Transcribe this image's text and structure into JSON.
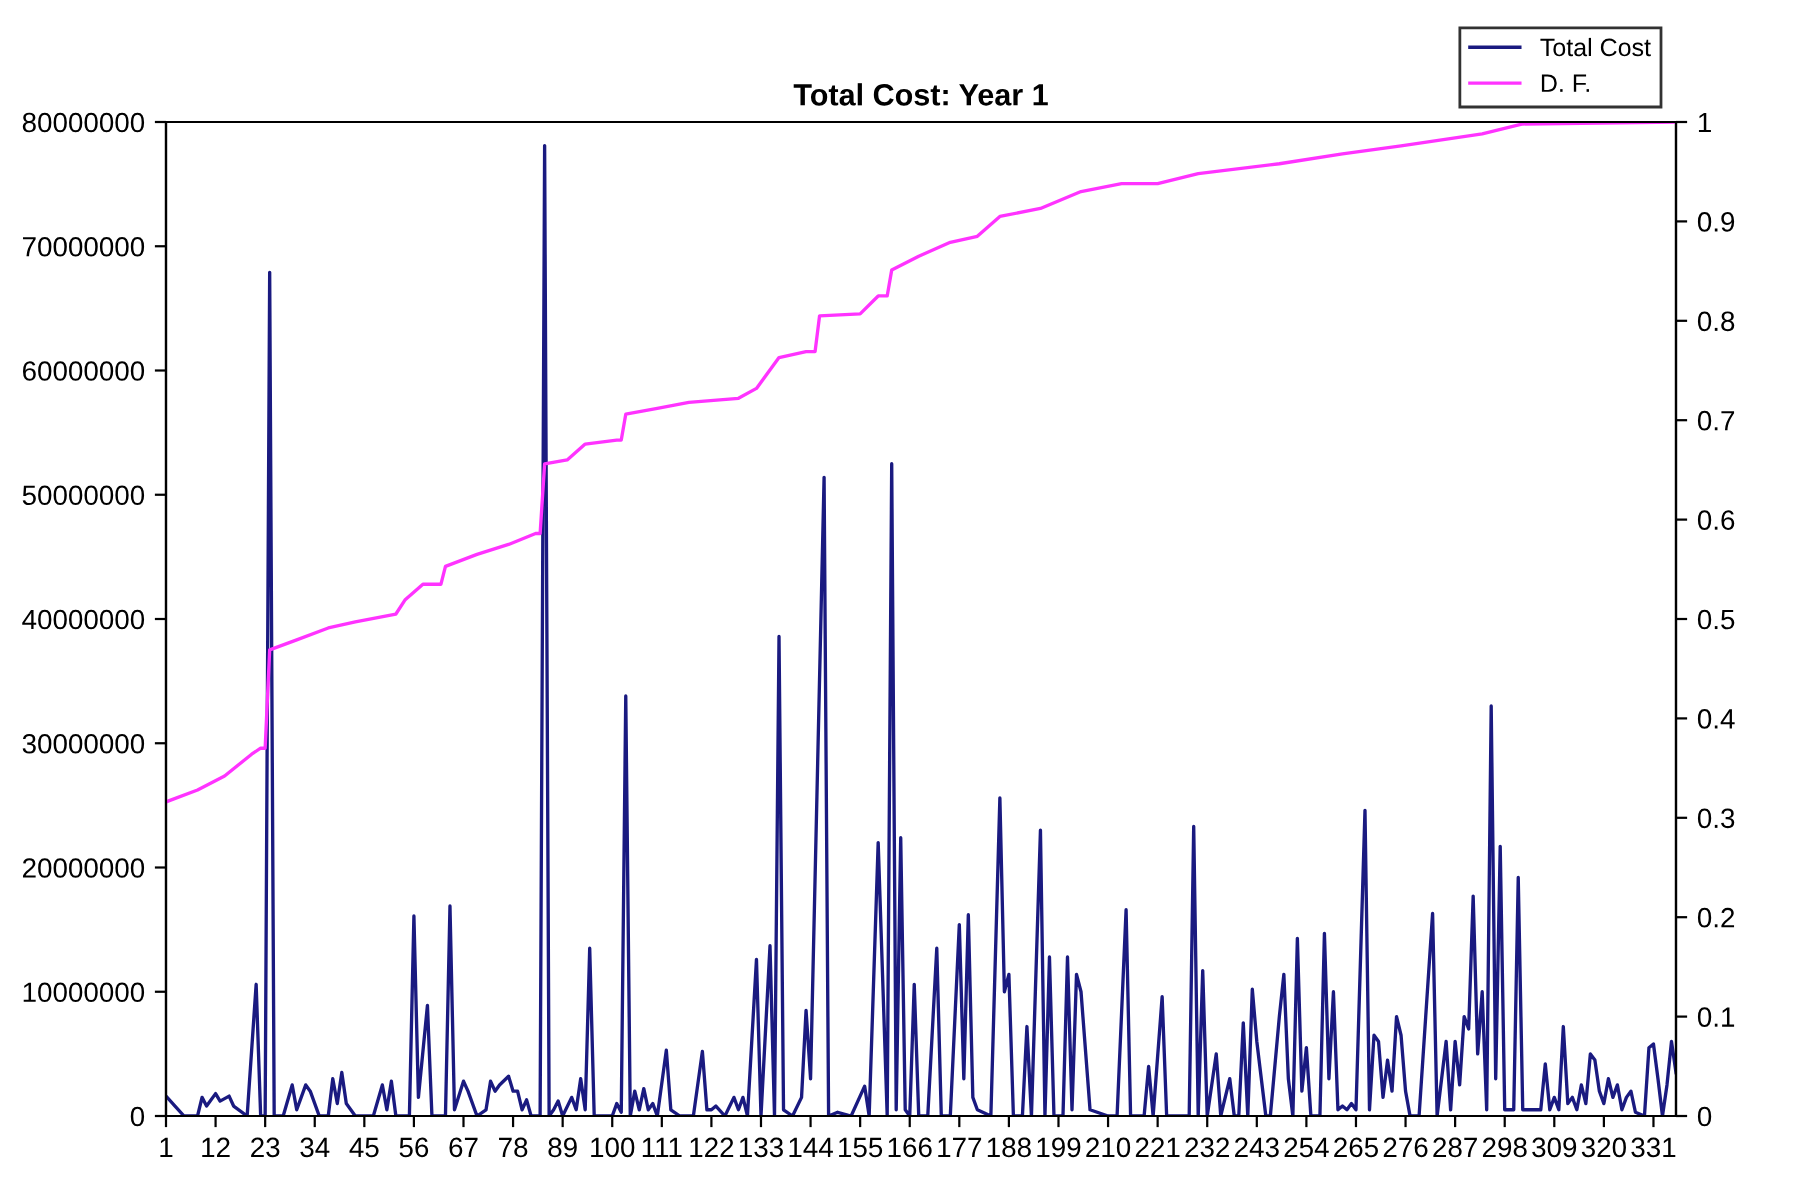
{
  "chart_data": {
    "type": "line",
    "title": "Total Cost: Year 1",
    "xlim": [
      1,
      336
    ],
    "xticks": [
      1,
      12,
      23,
      34,
      45,
      56,
      67,
      78,
      89,
      100,
      111,
      122,
      133,
      144,
      155,
      166,
      177,
      188,
      199,
      210,
      221,
      232,
      243,
      254,
      265,
      276,
      287,
      298,
      309,
      320,
      331
    ],
    "ylim": [
      0,
      80000000
    ],
    "yticks": [
      0,
      10000000,
      20000000,
      30000000,
      40000000,
      50000000,
      60000000,
      70000000,
      80000000
    ],
    "y2lim": [
      0,
      1
    ],
    "y2ticks": [
      0,
      0.1,
      0.2,
      0.3,
      0.4,
      0.5,
      0.6,
      0.7,
      0.8,
      0.9,
      1
    ],
    "grid": false,
    "legend": "top right",
    "series": [
      {
        "name": "Total Cost",
        "color": "#1a1a80",
        "x": [
          1,
          3,
          5,
          8,
          9,
          10,
          12,
          13,
          15,
          16,
          19,
          21,
          22,
          23,
          24,
          25,
          27,
          29,
          30,
          32,
          33,
          35,
          37,
          38,
          39,
          40,
          41,
          43,
          47,
          49,
          50,
          51,
          52,
          55,
          56,
          57,
          59,
          60,
          63,
          64,
          65,
          67,
          68,
          70,
          72,
          73,
          74,
          75,
          77,
          78,
          79,
          80,
          81,
          82,
          84,
          85,
          86,
          87,
          88,
          89,
          91,
          92,
          93,
          94,
          95,
          96,
          100,
          101,
          102,
          103,
          104,
          105,
          106,
          107,
          108,
          109,
          110,
          112,
          113,
          115,
          118,
          120,
          121,
          122,
          123,
          125,
          127,
          128,
          129,
          130,
          132,
          133,
          135,
          136,
          137,
          138,
          140,
          142,
          143,
          144,
          147,
          148,
          150,
          153,
          156,
          157,
          159,
          161,
          162,
          163,
          164,
          165,
          166,
          167,
          168,
          170,
          172,
          173,
          175,
          177,
          178,
          179,
          180,
          181,
          184,
          186,
          187,
          188,
          189,
          191,
          192,
          193,
          195,
          196,
          197,
          198,
          200,
          201,
          202,
          203,
          204,
          206,
          210,
          212,
          214,
          215,
          218,
          219,
          220,
          222,
          223,
          228,
          229,
          230,
          231,
          232,
          234,
          235,
          237,
          238,
          239,
          240,
          241,
          242,
          243,
          245,
          246,
          248,
          249,
          250,
          251,
          252,
          253,
          254,
          255,
          257,
          258,
          259,
          260,
          261,
          262,
          263,
          264,
          265,
          267,
          268,
          269,
          270,
          271,
          272,
          273,
          274,
          275,
          276,
          277,
          279,
          282,
          283,
          285,
          286,
          287,
          288,
          289,
          290,
          291,
          292,
          293,
          294,
          295,
          296,
          297,
          298,
          300,
          301,
          302,
          304,
          305,
          306,
          307,
          308,
          309,
          310,
          311,
          312,
          313,
          314,
          315,
          316,
          317,
          318,
          319,
          320,
          321,
          322,
          323,
          324,
          325,
          326,
          327,
          329,
          330,
          331,
          332,
          333,
          334,
          335,
          336
        ],
        "values": [
          1600000,
          800000,
          0,
          0,
          1500000,
          800000,
          1800000,
          1200000,
          1600000,
          800000,
          0,
          10600000,
          0,
          0,
          67900000,
          0,
          0,
          2500000,
          500000,
          2500000,
          2000000,
          0,
          0,
          3000000,
          1000000,
          3500000,
          1000000,
          0,
          0,
          2500000,
          500000,
          2800000,
          0,
          0,
          16100000,
          1500000,
          8900000,
          0,
          0,
          16900000,
          500000,
          2800000,
          2000000,
          0,
          500000,
          2800000,
          2000000,
          2500000,
          3200000,
          2000000,
          2000000,
          500000,
          1300000,
          0,
          0,
          78100000,
          0,
          500000,
          1200000,
          0,
          1500000,
          500000,
          3000000,
          500000,
          13500000,
          0,
          0,
          1000000,
          300000,
          33800000,
          0,
          2000000,
          500000,
          2200000,
          500000,
          1000000,
          0,
          5300000,
          500000,
          0,
          0,
          5200000,
          500000,
          500000,
          800000,
          0,
          1500000,
          500000,
          1500000,
          0,
          12600000,
          0,
          13700000,
          0,
          38600000,
          500000,
          0,
          1500000,
          8500000,
          3000000,
          51400000,
          0,
          300000,
          0,
          2400000,
          0,
          22000000,
          0,
          52500000,
          500000,
          22400000,
          500000,
          0,
          10600000,
          0,
          0,
          13500000,
          0,
          0,
          15400000,
          3000000,
          16200000,
          1500000,
          500000,
          0,
          25600000,
          10000000,
          11400000,
          0,
          0,
          7200000,
          0,
          23000000,
          0,
          12800000,
          0,
          0,
          12800000,
          500000,
          11400000,
          10000000,
          500000,
          0,
          0,
          16600000,
          0,
          0,
          4000000,
          0,
          9600000,
          0,
          0,
          23300000,
          0,
          11700000,
          0,
          5000000,
          0,
          3000000,
          0,
          0,
          7500000,
          0,
          10200000,
          6000000,
          0,
          0,
          8000000,
          11400000,
          3000000,
          0,
          14300000,
          2000000,
          5500000,
          0,
          0,
          14700000,
          3000000,
          10000000,
          500000,
          800000,
          500000,
          1000000,
          500000,
          24600000,
          500000,
          6500000,
          6000000,
          1500000,
          4500000,
          2000000,
          8000000,
          6500000,
          2000000,
          0,
          0,
          16300000,
          0,
          6000000,
          500000,
          6000000,
          2500000,
          8000000,
          7000000,
          17700000,
          5000000,
          10000000,
          500000,
          33000000,
          3000000,
          21700000,
          500000,
          500000,
          19200000,
          500000,
          500000,
          500000,
          500000,
          4200000,
          500000,
          1500000,
          500000,
          7200000,
          1000000,
          1500000,
          500000,
          2500000,
          1000000,
          5000000,
          4500000,
          2000000,
          1000000,
          3000000,
          1500000,
          2500000,
          500000,
          1500000,
          2000000,
          300000,
          0,
          5500000,
          5800000,
          3000000,
          0,
          2500000,
          6000000,
          3500000
        ]
      },
      {
        "name": "D. F.",
        "color": "#ff33ff",
        "axis": "y2",
        "x": [
          1,
          8,
          14,
          20,
          22,
          23,
          24,
          30,
          37,
          43,
          52,
          54,
          58,
          62,
          63,
          70,
          77,
          83,
          84,
          85,
          90,
          94,
          101,
          102,
          103,
          110,
          117,
          128,
          132,
          137,
          143,
          145,
          146,
          155,
          159,
          161,
          162,
          168,
          175,
          181,
          186,
          195,
          204,
          213,
          221,
          230,
          248,
          262,
          275,
          293,
          302,
          336
        ],
        "values": [
          0.316,
          0.328,
          0.342,
          0.364,
          0.37,
          0.37,
          0.469,
          0.479,
          0.491,
          0.497,
          0.505,
          0.519,
          0.535,
          0.535,
          0.553,
          0.565,
          0.575,
          0.586,
          0.586,
          0.656,
          0.66,
          0.676,
          0.68,
          0.68,
          0.706,
          0.712,
          0.718,
          0.722,
          0.732,
          0.763,
          0.769,
          0.769,
          0.805,
          0.807,
          0.825,
          0.825,
          0.851,
          0.865,
          0.879,
          0.885,
          0.905,
          0.913,
          0.93,
          0.938,
          0.938,
          0.948,
          0.958,
          0.968,
          0.976,
          0.988,
          0.998,
          1.0
        ]
      }
    ]
  }
}
